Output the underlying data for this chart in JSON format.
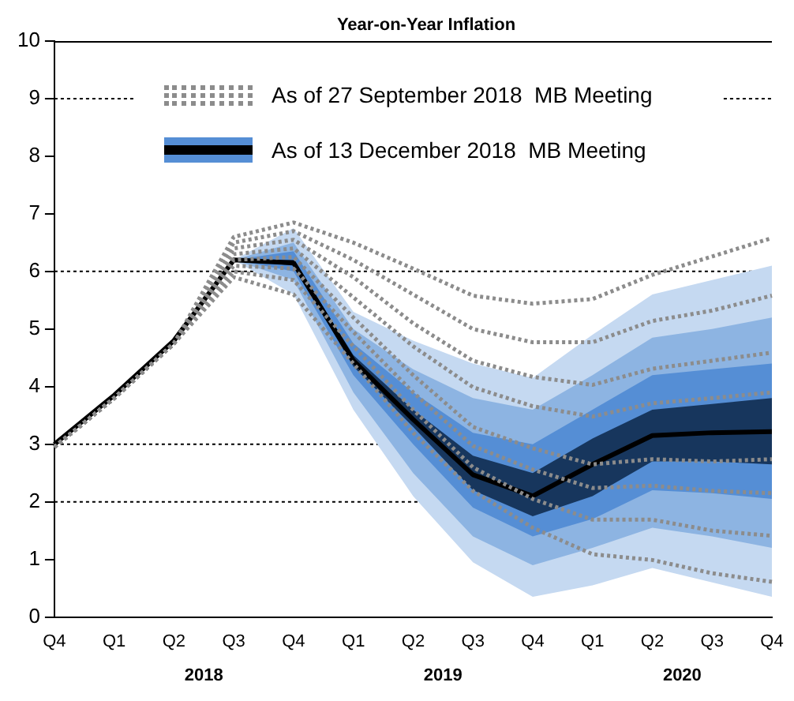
{
  "chart_data": {
    "type": "line",
    "title": "Year-on-Year Inflation",
    "categories": [
      "Q4",
      "Q1",
      "Q2",
      "Q3",
      "Q4",
      "Q1",
      "Q2",
      "Q3",
      "Q4",
      "Q1",
      "Q2",
      "Q3",
      "Q4"
    ],
    "ylim": [
      0,
      10
    ],
    "yticks": [
      0,
      1,
      2,
      3,
      4,
      5,
      6,
      7,
      8,
      9,
      10
    ],
    "legend": "top",
    "annotations": [
      "2018",
      "2019",
      "2020"
    ],
    "ref_lines": [
      {
        "axis": "y",
        "value": 2,
        "line_style": "dotted",
        "color": "#000000"
      },
      {
        "axis": "y",
        "value": 3,
        "line_style": "dotted",
        "color": "#000000"
      },
      {
        "axis": "y",
        "value": 6,
        "line_style": "dotted",
        "color": "#000000"
      },
      {
        "axis": "y",
        "value": 9,
        "line_style": "dotted",
        "color": "#000000"
      }
    ],
    "series": [
      {
        "type": "line",
        "color": "#c5d9f1",
        "values": [
          null,
          null,
          null,
          null,
          null,
          null,
          null,
          null,
          null,
          null,
          null,
          null,
          null
        ],
        "lower": [
          null,
          null,
          null,
          6.2,
          5.6,
          3.6,
          2.1,
          0.95,
          0.35,
          0.55,
          0.85,
          0.6,
          0.35
        ],
        "upper": [
          null,
          null,
          null,
          6.2,
          6.75,
          5.3,
          4.8,
          4.4,
          4.15,
          4.9,
          5.6,
          5.85,
          6.1
        ]
      },
      {
        "type": "line",
        "color": "#8db4e2",
        "values": [
          null,
          null,
          null,
          null,
          null,
          null,
          null,
          null,
          null,
          null,
          null,
          null,
          null
        ],
        "lower": [
          null,
          null,
          null,
          6.2,
          5.85,
          3.9,
          2.5,
          1.4,
          0.9,
          1.2,
          1.55,
          1.4,
          1.2
        ],
        "upper": [
          null,
          null,
          null,
          6.2,
          6.5,
          5.0,
          4.3,
          3.8,
          3.6,
          4.2,
          4.85,
          5.0,
          5.2
        ]
      },
      {
        "type": "line",
        "color": "#558ed5",
        "values": [
          null,
          null,
          null,
          null,
          null,
          null,
          null,
          null,
          null,
          null,
          null,
          null,
          null
        ],
        "lower": [
          null,
          null,
          null,
          6.2,
          6.0,
          4.2,
          3.0,
          1.9,
          1.4,
          1.7,
          2.2,
          2.15,
          2.05
        ],
        "upper": [
          null,
          null,
          null,
          6.2,
          6.35,
          4.75,
          3.9,
          3.2,
          3.0,
          3.6,
          4.2,
          4.3,
          4.4
        ]
      },
      {
        "type": "line",
        "color": "#17365d",
        "values": [
          null,
          null,
          null,
          null,
          null,
          null,
          null,
          null,
          null,
          null,
          null,
          null,
          null
        ],
        "lower": [
          null,
          null,
          null,
          6.2,
          6.1,
          4.35,
          3.3,
          2.2,
          1.75,
          2.1,
          2.7,
          2.7,
          2.65
        ],
        "upper": [
          null,
          null,
          null,
          6.2,
          6.2,
          4.55,
          3.6,
          2.8,
          2.5,
          3.1,
          3.6,
          3.7,
          3.8
        ]
      },
      {
        "type": "line",
        "color": "#8c8c8c",
        "line_style": "dotted",
        "values": [
          2.95,
          3.8,
          4.75,
          6.6,
          6.85,
          6.5,
          6.05,
          5.58,
          5.44,
          5.52,
          5.94,
          6.26,
          6.58
        ]
      },
      {
        "type": "line",
        "color": "#8c8c8c",
        "line_style": "dotted",
        "values": [
          2.95,
          3.8,
          4.75,
          6.5,
          6.7,
          6.2,
          5.6,
          5.0,
          4.77,
          4.77,
          5.14,
          5.32,
          5.58
        ]
      },
      {
        "type": "line",
        "color": "#8c8c8c",
        "line_style": "dotted",
        "values": [
          2.95,
          3.8,
          4.75,
          6.4,
          6.55,
          5.9,
          5.1,
          4.45,
          4.17,
          4.03,
          4.31,
          4.45,
          4.59
        ]
      },
      {
        "type": "line",
        "name": "As of 27 September 2018  MB Meeting",
        "color": "#8c8c8c",
        "line_style": "dotted",
        "values": [
          2.95,
          3.8,
          4.75,
          6.3,
          6.4,
          5.55,
          4.7,
          3.99,
          3.66,
          3.48,
          3.71,
          3.8,
          3.9
        ]
      },
      {
        "type": "line",
        "color": "#8c8c8c",
        "line_style": "dotted",
        "values": [
          2.95,
          3.8,
          4.75,
          6.2,
          6.25,
          5.2,
          4.2,
          3.3,
          2.93,
          2.65,
          2.74,
          2.7,
          2.74
        ]
      },
      {
        "type": "line",
        "color": "#8c8c8c",
        "line_style": "dotted",
        "values": [
          2.95,
          3.8,
          4.75,
          6.1,
          6.05,
          4.95,
          3.9,
          2.97,
          2.56,
          2.24,
          2.28,
          2.19,
          2.15
        ]
      },
      {
        "type": "line",
        "color": "#8c8c8c",
        "line_style": "dotted",
        "values": [
          2.95,
          3.8,
          4.75,
          6.0,
          5.85,
          4.7,
          3.6,
          2.6,
          2.05,
          1.69,
          1.69,
          1.5,
          1.41
        ]
      },
      {
        "type": "line",
        "color": "#8c8c8c",
        "line_style": "dotted",
        "values": [
          2.95,
          3.8,
          4.75,
          5.9,
          5.6,
          4.4,
          3.2,
          2.19,
          1.55,
          1.09,
          0.99,
          0.76,
          0.61
        ]
      },
      {
        "type": "line",
        "name": "As of 13 December 2018  MB Meeting",
        "color": "#000000",
        "values": [
          3.0,
          3.85,
          4.8,
          6.2,
          6.15,
          4.45,
          3.43,
          2.47,
          2.1,
          2.65,
          3.15,
          3.2,
          3.22
        ]
      }
    ]
  }
}
